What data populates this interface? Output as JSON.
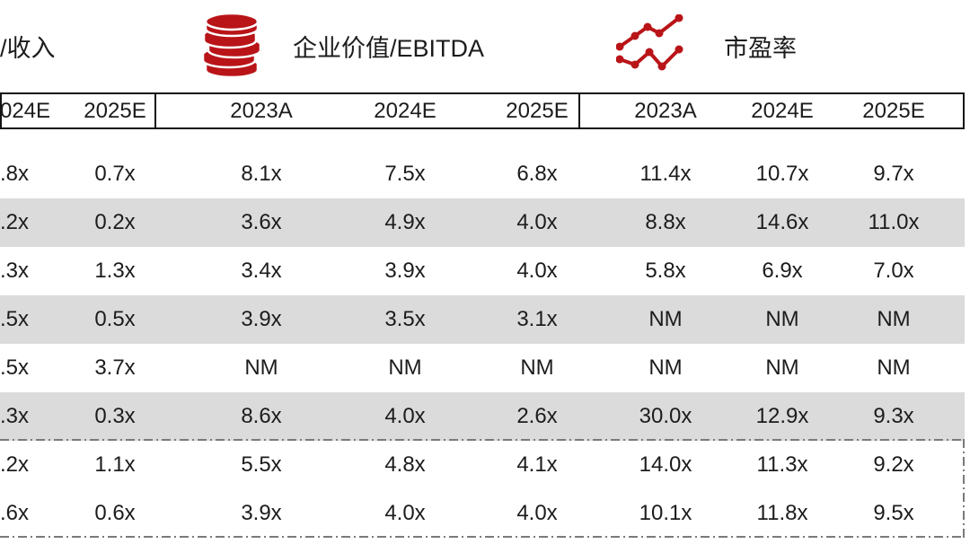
{
  "legend": {
    "truncated_left_label": "/收入",
    "items": [
      {
        "icon": "coin-stack-icon",
        "label": "企业价值/EBITDA"
      },
      {
        "icon": "line-chart-icon",
        "label": "市盈率"
      }
    ]
  },
  "colors": {
    "accent_red": "#B91418",
    "stripe_gray": "#DBDBDB",
    "border_dark": "#141414",
    "dash_gray": "#7A7A7A"
  },
  "table": {
    "column_headers": [
      "024E",
      "2025E",
      "2023A",
      "2024E",
      "2025E",
      "2023A",
      "2024E",
      "2025E"
    ],
    "rows": [
      [
        ".8x",
        "0.7x",
        "8.1x",
        "7.5x",
        "6.8x",
        "11.4x",
        "10.7x",
        "9.7x"
      ],
      [
        ".2x",
        "0.2x",
        "3.6x",
        "4.9x",
        "4.0x",
        "8.8x",
        "14.6x",
        "11.0x"
      ],
      [
        ".3x",
        "1.3x",
        "3.4x",
        "3.9x",
        "4.0x",
        "5.8x",
        "6.9x",
        "7.0x"
      ],
      [
        ".5x",
        "0.5x",
        "3.9x",
        "3.5x",
        "3.1x",
        "NM",
        "NM",
        "NM"
      ],
      [
        ".5x",
        "3.7x",
        "NM",
        "NM",
        "NM",
        "NM",
        "NM",
        "NM"
      ],
      [
        ".3x",
        "0.3x",
        "8.6x",
        "4.0x",
        "2.6x",
        "30.0x",
        "12.9x",
        "9.3x"
      ],
      [
        ".2x",
        "1.1x",
        "5.5x",
        "4.8x",
        "4.1x",
        "14.0x",
        "11.3x",
        "9.2x"
      ],
      [
        ".6x",
        "0.6x",
        "3.9x",
        "4.0x",
        "4.0x",
        "10.1x",
        "11.8x",
        "9.5x"
      ]
    ],
    "striped_row_indexes": [
      1,
      3,
      5
    ],
    "summary_row_indexes": [
      6,
      7
    ]
  }
}
